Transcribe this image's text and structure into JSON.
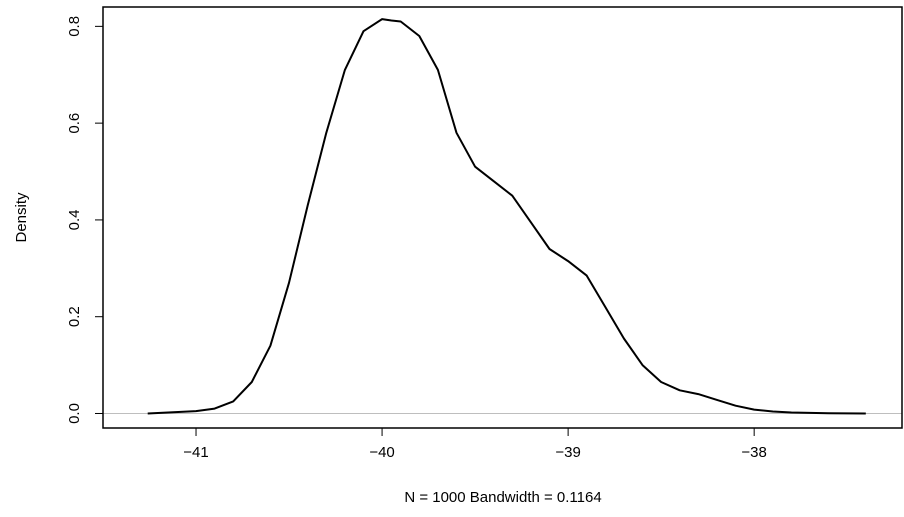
{
  "chart_data": {
    "type": "line",
    "xlabel": "N = 1000   Bandwidth = 0.1164",
    "ylabel": "Density",
    "xlim": [
      -41.5,
      -37.2
    ],
    "ylim": [
      -0.03,
      0.84
    ],
    "x_ticks": [
      -41,
      -40,
      -39,
      -38
    ],
    "x_tick_labels": [
      "−41",
      "−40",
      "−39",
      "−38"
    ],
    "y_ticks": [
      0.0,
      0.2,
      0.4,
      0.6,
      0.8
    ],
    "y_tick_labels": [
      "0.0",
      "0.2",
      "0.4",
      "0.6",
      "0.8"
    ],
    "baseline": 0,
    "grid": false,
    "series": [
      {
        "color": "#000000",
        "x": [
          -41.26,
          -41.0,
          -40.9,
          -40.8,
          -40.7,
          -40.6,
          -40.5,
          -40.4,
          -40.3,
          -40.2,
          -40.1,
          -40.0,
          -39.95,
          -39.9,
          -39.8,
          -39.7,
          -39.6,
          -39.5,
          -39.4,
          -39.3,
          -39.2,
          -39.1,
          -39.0,
          -38.9,
          -38.8,
          -38.7,
          -38.6,
          -38.5,
          -38.4,
          -38.3,
          -38.2,
          -38.1,
          -38.0,
          -37.9,
          -37.8,
          -37.6,
          -37.4
        ],
        "y": [
          0.0,
          0.005,
          0.01,
          0.025,
          0.065,
          0.14,
          0.27,
          0.43,
          0.58,
          0.71,
          0.79,
          0.815,
          0.812,
          0.81,
          0.78,
          0.71,
          0.58,
          0.51,
          0.48,
          0.45,
          0.395,
          0.34,
          0.315,
          0.285,
          0.22,
          0.155,
          0.1,
          0.065,
          0.048,
          0.04,
          0.028,
          0.016,
          0.008,
          0.004,
          0.002,
          0.0005,
          0.0
        ]
      }
    ]
  }
}
